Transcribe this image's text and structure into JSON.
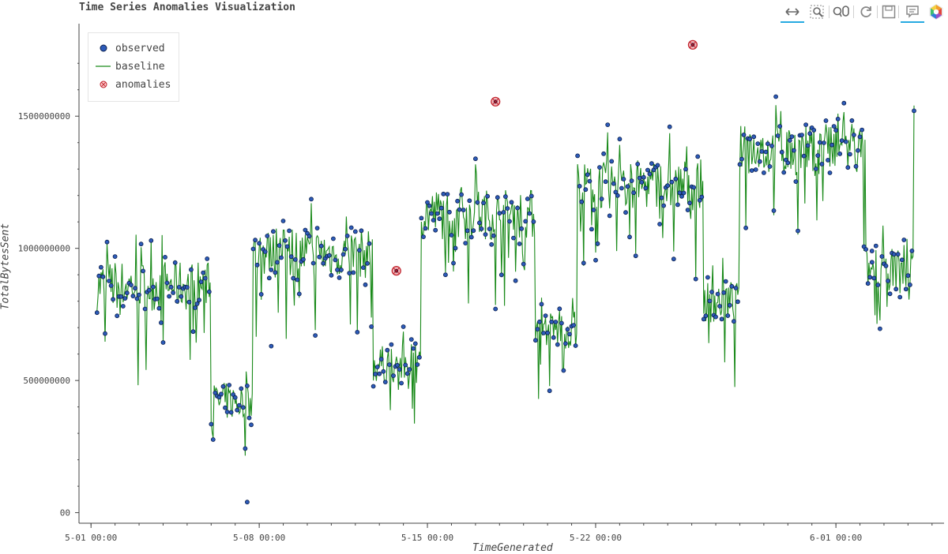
{
  "title": "Time Series Anomalies Visualization",
  "toolbar": {
    "tools": [
      {
        "name": "pan-tool-icon",
        "active": true
      },
      {
        "name": "box-zoom-tool-icon",
        "active": false
      },
      {
        "name": "wheel-zoom-tool-icon",
        "active": false
      },
      {
        "name": "reset-tool-icon",
        "active": false
      },
      {
        "name": "save-tool-icon",
        "active": false
      },
      {
        "name": "hover-tool-icon",
        "active": true
      },
      {
        "name": "bokeh-logo-icon",
        "active": false
      }
    ]
  },
  "colors": {
    "observed_fill": "#2d5bb9",
    "observed_edge": "#0b1f4d",
    "baseline": "#1a8a1a",
    "anomaly": "#c0202a",
    "axis": "#444444"
  },
  "chart_data": {
    "type": "scatter",
    "title": "Time Series Anomalies Visualization",
    "xlabel": "TimeGenerated",
    "ylabel": "TotalBytesSent",
    "x_ticks": [
      "5-01 00:00",
      "5-08 00:00",
      "5-15 00:00",
      "5-22 00:00",
      "6-01 00:00"
    ],
    "y_ticks": [
      "00",
      "500000000",
      "1000000000",
      "1500000000"
    ],
    "xlim": [
      "2023-04-30T12:00",
      "2023-06-05T12:00"
    ],
    "ylim": [
      -40000000,
      1850000000
    ],
    "legend": {
      "position": "top-left",
      "entries": [
        "observed",
        "baseline",
        "anomalies"
      ]
    },
    "grid": false,
    "segments": [
      {
        "start": "2023-05-01T06:00",
        "end": "2023-05-06T00:00",
        "level": 860000000,
        "amp": 60000000
      },
      {
        "start": "2023-05-06T00:00",
        "end": "2023-05-07T18:00",
        "level": 420000000,
        "amp": 45000000
      },
      {
        "start": "2023-05-07T18:00",
        "end": "2023-05-12T18:00",
        "level": 980000000,
        "amp": 60000000
      },
      {
        "start": "2023-05-12T18:00",
        "end": "2023-05-14T18:00",
        "level": 560000000,
        "amp": 45000000
      },
      {
        "start": "2023-05-14T18:00",
        "end": "2023-05-19T12:00",
        "level": 1130000000,
        "amp": 60000000
      },
      {
        "start": "2023-05-19T12:00",
        "end": "2023-05-21T06:00",
        "level": 690000000,
        "amp": 45000000
      },
      {
        "start": "2023-05-21T06:00",
        "end": "2023-05-26T12:00",
        "level": 1240000000,
        "amp": 60000000
      },
      {
        "start": "2023-05-26T12:00",
        "end": "2023-05-28T00:00",
        "level": 800000000,
        "amp": 50000000
      },
      {
        "start": "2023-05-28T00:00",
        "end": "2023-06-02T06:00",
        "level": 1370000000,
        "amp": 60000000
      },
      {
        "start": "2023-06-02T06:00",
        "end": "2023-06-04T06:00",
        "level": 920000000,
        "amp": 50000000
      }
    ],
    "spike": {
      "x": "2023-06-04T06:00",
      "y": 1540000000
    },
    "outliers": [
      {
        "x": "2023-05-07T12:00",
        "y": 40000000
      },
      {
        "x": "2023-05-08T12:00",
        "y": 630000000
      },
      {
        "x": "2023-06-02T12:00",
        "y": 990000000
      }
    ],
    "anomalies": [
      {
        "x": "2023-05-13T17:00",
        "y": 915000000
      },
      {
        "x": "2023-05-17T20:00",
        "y": 1555000000
      },
      {
        "x": "2023-05-26T01:00",
        "y": 1770000000
      }
    ]
  }
}
